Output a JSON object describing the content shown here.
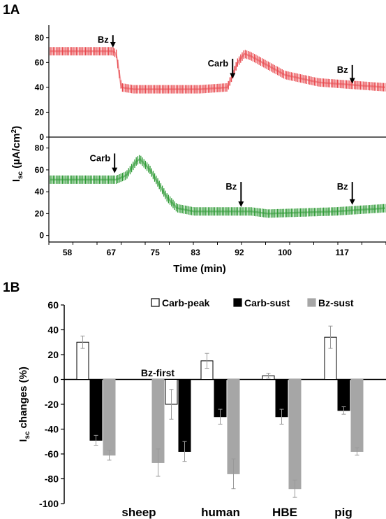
{
  "chart_data": [
    {
      "panel": "1A",
      "type": "line",
      "xlabel": "Time (min)",
      "ylabel_main": "I",
      "ylabel_sub": "sc",
      "ylabel_unit": " (µA/cm",
      "ylabel_sup": "2",
      "ylabel_close": ")",
      "x_ticks": [
        "58",
        "67",
        "75",
        "83",
        "92",
        "100",
        "117"
      ],
      "subplots": [
        {
          "name": "top",
          "color": "#e8484d",
          "y_ticks": [
            0,
            20,
            40,
            60,
            80
          ],
          "ylim": [
            0,
            90
          ],
          "series_points": [
            [
              0,
              69
            ],
            [
              0.19,
              69
            ],
            [
              0.2,
              67
            ],
            [
              0.215,
              40
            ],
            [
              0.25,
              38.5
            ],
            [
              0.45,
              38.5
            ],
            [
              0.53,
              40
            ],
            [
              0.56,
              60
            ],
            [
              0.58,
              67
            ],
            [
              0.6,
              65
            ],
            [
              0.7,
              50
            ],
            [
              0.8,
              44
            ],
            [
              1,
              40
            ]
          ],
          "annotations": [
            {
              "label": "Bz",
              "pos": 0.19,
              "arrow_top_y": 82,
              "arrow_tip_y": 72
            },
            {
              "label": "Carb",
              "pos": 0.545,
              "arrow_top_y": 63,
              "arrow_tip_y": 47
            },
            {
              "label": "Bz",
              "pos": 0.9,
              "arrow_top_y": 58,
              "arrow_tip_y": 43
            }
          ]
        },
        {
          "name": "bottom",
          "color": "#2e9a35",
          "y_ticks": [
            0,
            20,
            40,
            60,
            80
          ],
          "ylim": [
            -6,
            90
          ],
          "series_points": [
            [
              0,
              51
            ],
            [
              0.2,
              51
            ],
            [
              0.23,
              55
            ],
            [
              0.26,
              68
            ],
            [
              0.27,
              70
            ],
            [
              0.3,
              60
            ],
            [
              0.35,
              35
            ],
            [
              0.38,
              25
            ],
            [
              0.43,
              22
            ],
            [
              0.6,
              22
            ],
            [
              0.65,
              20
            ],
            [
              0.85,
              22
            ],
            [
              1,
              25
            ]
          ],
          "annotations": [
            {
              "label": "Carb",
              "pos": 0.195,
              "arrow_top_y": 75,
              "arrow_tip_y": 57
            },
            {
              "label": "Bz",
              "pos": 0.57,
              "arrow_top_y": 49,
              "arrow_tip_y": 26
            },
            {
              "label": "Bz",
              "pos": 0.9,
              "arrow_top_y": 49,
              "arrow_tip_y": 28
            }
          ]
        }
      ]
    },
    {
      "panel": "1B",
      "type": "bar",
      "ylabel_main": "I",
      "ylabel_sub": "sc",
      "ylabel_rest": " changes (%)",
      "ylim": [
        -100,
        60
      ],
      "y_ticks": [
        -100,
        -80,
        -60,
        -40,
        -20,
        0,
        20,
        40,
        60
      ],
      "categories": [
        "sheep",
        "human",
        "HBE",
        "pig"
      ],
      "series": [
        {
          "name": "Carb-peak",
          "fill": "#ffffff",
          "stroke": "#000000"
        },
        {
          "name": "Carb-sust",
          "fill": "#000000",
          "stroke": "#000000"
        },
        {
          "name": "Bz-sust",
          "fill": "#a6a6a6",
          "stroke": "#a6a6a6"
        }
      ],
      "groups": [
        {
          "category": "sheep",
          "sub_label": "",
          "values": [
            30,
            -49,
            -61
          ],
          "errors": [
            5,
            4,
            4
          ]
        },
        {
          "category": "sheep",
          "sub_label": "Bz-first",
          "values": [
            -20,
            -58,
            -67
          ],
          "errors": [
            12,
            8,
            11
          ],
          "order": [
            2,
            0,
            1
          ]
        },
        {
          "category": "human",
          "sub_label": "",
          "values": [
            15,
            -30,
            -76
          ],
          "errors": [
            6,
            6,
            12
          ]
        },
        {
          "category": "HBE",
          "sub_label": "",
          "values": [
            3,
            -30,
            -88
          ],
          "errors": [
            2,
            6,
            7
          ]
        },
        {
          "category": "pig",
          "sub_label": "",
          "values": [
            34,
            -25,
            -58
          ],
          "errors": [
            9,
            3,
            3
          ]
        }
      ],
      "legend_placement": "top-right"
    }
  ]
}
